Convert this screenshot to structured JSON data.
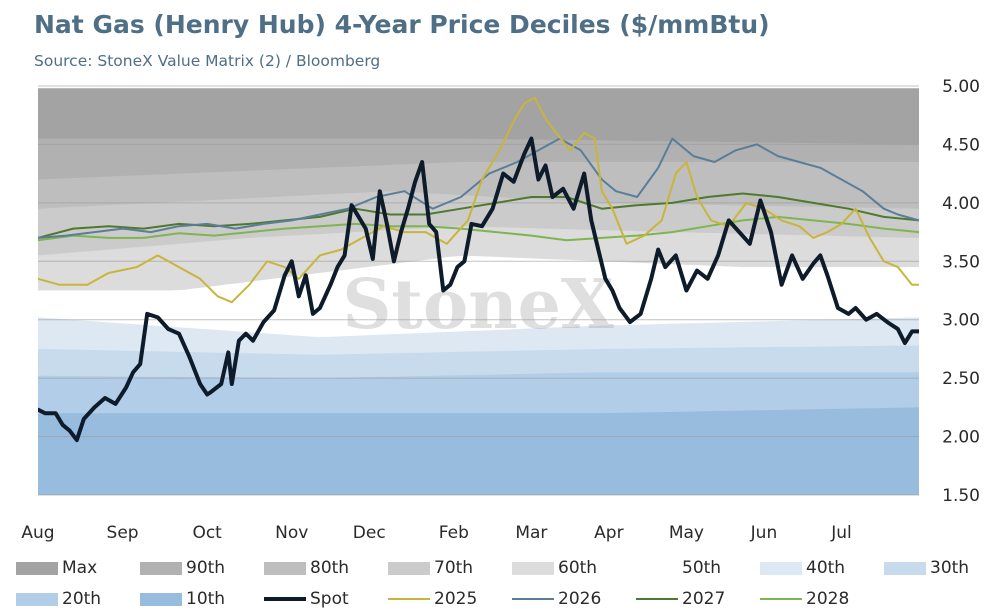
{
  "title": "Nat Gas (Henry Hub) 4-Year Price Deciles ($/mmBtu)",
  "subtitle": "Source: StoneX Value Matrix (2) / Bloomberg",
  "watermark": "StoneX",
  "legend": [
    {
      "key": "max",
      "label": "Max",
      "kind": "band",
      "color": "#a3a3a3"
    },
    {
      "key": "p90",
      "label": "90th",
      "kind": "band",
      "color": "#b1b1b1"
    },
    {
      "key": "p80",
      "label": "80th",
      "kind": "band",
      "color": "#bebebe"
    },
    {
      "key": "p70",
      "label": "70th",
      "kind": "band",
      "color": "#cbcbcb"
    },
    {
      "key": "p60",
      "label": "60th",
      "kind": "band",
      "color": "#dcdcdc"
    },
    {
      "key": "p50",
      "label": "50th",
      "kind": "band",
      "color": "#ffffff"
    },
    {
      "key": "p40",
      "label": "40th",
      "kind": "band",
      "color": "#dde8f3"
    },
    {
      "key": "p30",
      "label": "30th",
      "kind": "band",
      "color": "#c7dbed"
    },
    {
      "key": "p20",
      "label": "20th",
      "kind": "band",
      "color": "#b1cde7"
    },
    {
      "key": "p10",
      "label": "10th",
      "kind": "band",
      "color": "#97bcdd"
    },
    {
      "key": "spot",
      "label": "Spot",
      "kind": "line",
      "color": "#0d1b2a",
      "width": 4
    },
    {
      "key": "s2025",
      "label": "2025",
      "kind": "line",
      "color": "#c8b53a",
      "width": 2
    },
    {
      "key": "s2026",
      "label": "2026",
      "kind": "line",
      "color": "#5a7e98",
      "width": 2
    },
    {
      "key": "s2027",
      "label": "2027",
      "kind": "line",
      "color": "#4f7a2e",
      "width": 2
    },
    {
      "key": "s2028",
      "label": "2028",
      "kind": "line",
      "color": "#7fb550",
      "width": 2
    }
  ],
  "chart_data": {
    "type": "area",
    "title": "Nat Gas (Henry Hub) 4-Year Price Deciles ($/mmBtu)",
    "ylim": [
      1.5,
      5.0
    ],
    "yticks": [
      "5.00",
      "4.50",
      "4.00",
      "3.50",
      "3.00",
      "2.50",
      "2.00",
      "1.50"
    ],
    "y_axis_side": "right",
    "grid": true,
    "legend_position": "bottom",
    "x_range": [
      0,
      12.5
    ],
    "x_labels": [
      "Aug",
      "Sep",
      "Oct",
      "Nov",
      "Dec",
      "Feb",
      "Mar",
      "Apr",
      "May",
      "Jun",
      "Jul"
    ],
    "x_label_positions": [
      0,
      1.2,
      2.4,
      3.6,
      4.7,
      5.9,
      7.0,
      8.1,
      9.2,
      10.3,
      11.4
    ],
    "bands": [
      {
        "name": "Max",
        "x": [
          0,
          6,
          12.5
        ],
        "values": [
          4.98,
          4.98,
          4.98
        ]
      },
      {
        "name": "90th",
        "x": [
          0,
          6,
          12.5
        ],
        "values": [
          4.55,
          4.55,
          4.5
        ]
      },
      {
        "name": "80th",
        "x": [
          0,
          6,
          12.5
        ],
        "values": [
          4.2,
          4.35,
          4.35
        ]
      },
      {
        "name": "70th",
        "x": [
          0,
          5,
          8,
          12.5
        ],
        "values": [
          3.95,
          4.1,
          4.0,
          3.95
        ]
      },
      {
        "name": "60th",
        "x": [
          0,
          3,
          6,
          9,
          12.5
        ],
        "values": [
          3.55,
          3.7,
          3.8,
          3.75,
          3.7
        ]
      },
      {
        "name": "50th",
        "x": [
          0,
          2,
          4,
          6,
          8,
          10,
          12.5
        ],
        "values": [
          3.25,
          3.25,
          3.4,
          3.55,
          3.5,
          3.45,
          3.45
        ]
      },
      {
        "name": "40th",
        "x": [
          0,
          4,
          8,
          12.5
        ],
        "values": [
          3.02,
          2.85,
          2.95,
          3.02
        ]
      },
      {
        "name": "30th",
        "x": [
          0,
          4,
          8,
          12.5
        ],
        "values": [
          2.75,
          2.7,
          2.75,
          2.78
        ]
      },
      {
        "name": "20th",
        "x": [
          0,
          4,
          8,
          12.5
        ],
        "values": [
          2.52,
          2.5,
          2.55,
          2.55
        ]
      },
      {
        "name": "10th",
        "x": [
          0,
          4,
          8,
          12.5
        ],
        "values": [
          2.2,
          2.2,
          2.2,
          2.25
        ]
      }
    ],
    "series": [
      {
        "name": "Spot",
        "x": [
          0,
          0.1,
          0.25,
          0.35,
          0.45,
          0.55,
          0.65,
          0.8,
          0.95,
          1.1,
          1.25,
          1.35,
          1.45,
          1.55,
          1.7,
          1.85,
          2.0,
          2.15,
          2.3,
          2.4,
          2.45,
          2.6,
          2.7,
          2.75,
          2.85,
          2.95,
          3.05,
          3.2,
          3.35,
          3.5,
          3.6,
          3.7,
          3.8,
          3.9,
          4.0,
          4.15,
          4.25,
          4.35,
          4.45,
          4.55,
          4.65,
          4.75,
          4.85,
          4.95,
          5.05,
          5.15,
          5.25,
          5.35,
          5.45,
          5.55,
          5.65,
          5.75,
          5.85,
          5.95,
          6.05,
          6.15,
          6.3,
          6.45,
          6.6,
          6.75,
          6.9,
          7.0,
          7.1,
          7.2,
          7.3,
          7.45,
          7.6,
          7.75,
          7.85,
          7.95,
          8.05,
          8.15,
          8.25,
          8.4,
          8.55,
          8.7,
          8.8,
          8.9,
          9.05,
          9.2,
          9.35,
          9.5,
          9.65,
          9.8,
          9.95,
          10.1,
          10.25,
          10.4,
          10.55,
          10.7,
          10.85,
          11.0,
          11.1,
          11.2,
          11.35,
          11.5,
          11.6,
          11.75,
          11.9,
          12.05,
          12.2,
          12.3,
          12.4,
          12.5
        ],
        "values": [
          2.23,
          2.2,
          2.2,
          2.1,
          2.05,
          1.97,
          2.15,
          2.25,
          2.33,
          2.28,
          2.42,
          2.55,
          2.62,
          3.05,
          3.02,
          2.92,
          2.88,
          2.68,
          2.45,
          2.36,
          2.38,
          2.45,
          2.72,
          2.45,
          2.82,
          2.88,
          2.82,
          2.98,
          3.08,
          3.38,
          3.5,
          3.2,
          3.38,
          3.05,
          3.1,
          3.3,
          3.45,
          3.55,
          3.98,
          3.88,
          3.78,
          3.52,
          4.1,
          3.82,
          3.5,
          3.75,
          3.95,
          4.18,
          4.35,
          3.82,
          3.75,
          3.25,
          3.3,
          3.45,
          3.5,
          3.82,
          3.8,
          3.95,
          4.25,
          4.18,
          4.42,
          4.55,
          4.2,
          4.32,
          4.05,
          4.12,
          3.95,
          4.25,
          3.85,
          3.6,
          3.35,
          3.25,
          3.1,
          2.98,
          3.05,
          3.35,
          3.6,
          3.45,
          3.55,
          3.25,
          3.42,
          3.35,
          3.55,
          3.85,
          3.75,
          3.65,
          4.02,
          3.75,
          3.3,
          3.55,
          3.35,
          3.48,
          3.55,
          3.38,
          3.1,
          3.05,
          3.1,
          3.0,
          3.05,
          2.98,
          2.92,
          2.8,
          2.9,
          2.9
        ]
      },
      {
        "name": "2025",
        "x": [
          0,
          0.3,
          0.7,
          1.0,
          1.4,
          1.7,
          2.0,
          2.3,
          2.55,
          2.75,
          3.0,
          3.25,
          3.5,
          3.7,
          4.0,
          4.3,
          4.6,
          4.9,
          5.2,
          5.5,
          5.8,
          6.1,
          6.3,
          6.55,
          6.75,
          6.9,
          7.05,
          7.2,
          7.35,
          7.55,
          7.75,
          7.9,
          8.0,
          8.15,
          8.35,
          8.6,
          8.85,
          9.05,
          9.2,
          9.35,
          9.55,
          9.8,
          10.05,
          10.3,
          10.55,
          10.8,
          11.0,
          11.2,
          11.4,
          11.6,
          11.8,
          12.0,
          12.2,
          12.4,
          12.5
        ],
        "values": [
          3.35,
          3.3,
          3.3,
          3.4,
          3.45,
          3.55,
          3.45,
          3.35,
          3.2,
          3.15,
          3.3,
          3.5,
          3.45,
          3.35,
          3.55,
          3.6,
          3.7,
          3.8,
          3.75,
          3.75,
          3.65,
          3.85,
          4.2,
          4.45,
          4.7,
          4.85,
          4.9,
          4.72,
          4.6,
          4.45,
          4.6,
          4.55,
          4.1,
          3.95,
          3.65,
          3.72,
          3.85,
          4.25,
          4.35,
          4.05,
          3.85,
          3.8,
          4.0,
          3.95,
          3.85,
          3.8,
          3.7,
          3.75,
          3.82,
          3.95,
          3.7,
          3.5,
          3.45,
          3.3,
          3.3
        ]
      },
      {
        "name": "2026",
        "x": [
          0,
          0.4,
          0.8,
          1.2,
          1.6,
          2.0,
          2.4,
          2.8,
          3.2,
          3.6,
          4.0,
          4.4,
          4.8,
          5.2,
          5.6,
          6.0,
          6.4,
          6.8,
          7.1,
          7.4,
          7.7,
          8.0,
          8.2,
          8.5,
          8.8,
          9.0,
          9.3,
          9.6,
          9.9,
          10.2,
          10.5,
          10.8,
          11.1,
          11.4,
          11.7,
          12.0,
          12.2,
          12.5
        ],
        "values": [
          3.7,
          3.72,
          3.75,
          3.78,
          3.75,
          3.8,
          3.82,
          3.78,
          3.82,
          3.85,
          3.9,
          3.95,
          4.05,
          4.1,
          3.95,
          4.05,
          4.25,
          4.35,
          4.45,
          4.55,
          4.45,
          4.2,
          4.1,
          4.05,
          4.3,
          4.55,
          4.4,
          4.35,
          4.45,
          4.5,
          4.4,
          4.35,
          4.3,
          4.2,
          4.1,
          3.95,
          3.9,
          3.85
        ]
      },
      {
        "name": "2027",
        "x": [
          0,
          0.5,
          1.0,
          1.5,
          2.0,
          2.5,
          3.0,
          3.5,
          4.0,
          4.5,
          5.0,
          5.5,
          6.0,
          6.5,
          7.0,
          7.5,
          8.0,
          8.5,
          9.0,
          9.5,
          10.0,
          10.5,
          11.0,
          11.5,
          12.0,
          12.5
        ],
        "values": [
          3.7,
          3.78,
          3.8,
          3.78,
          3.82,
          3.8,
          3.82,
          3.85,
          3.88,
          3.95,
          3.9,
          3.9,
          3.95,
          4.0,
          4.05,
          4.05,
          3.95,
          3.98,
          4.0,
          4.05,
          4.08,
          4.05,
          4.0,
          3.95,
          3.88,
          3.85
        ]
      },
      {
        "name": "2028",
        "x": [
          0,
          0.5,
          1.0,
          1.5,
          2.0,
          2.5,
          3.0,
          3.5,
          4.0,
          4.5,
          5.0,
          5.5,
          6.0,
          6.5,
          7.0,
          7.5,
          8.0,
          8.5,
          9.0,
          9.5,
          10.0,
          10.5,
          11.0,
          11.5,
          12.0,
          12.5
        ],
        "values": [
          3.68,
          3.72,
          3.7,
          3.7,
          3.74,
          3.72,
          3.75,
          3.78,
          3.8,
          3.82,
          3.8,
          3.8,
          3.78,
          3.75,
          3.72,
          3.68,
          3.7,
          3.72,
          3.75,
          3.8,
          3.85,
          3.88,
          3.85,
          3.82,
          3.78,
          3.75
        ]
      }
    ]
  }
}
